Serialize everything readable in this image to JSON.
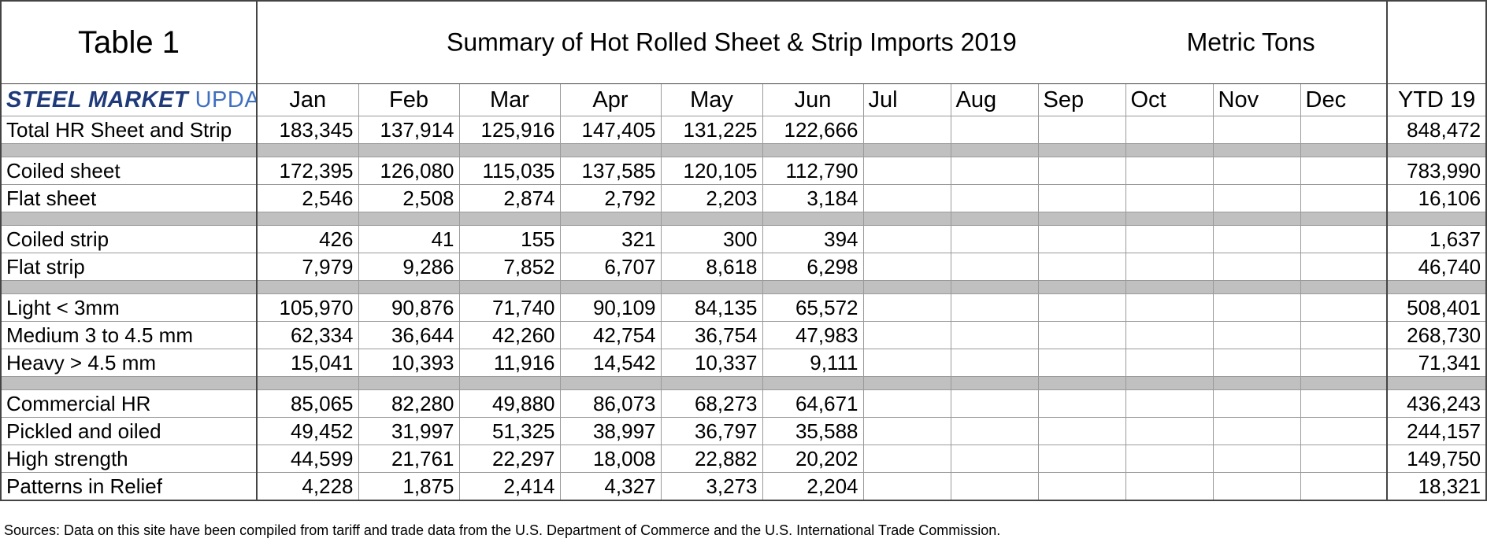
{
  "header": {
    "title": "Table 1",
    "subtitle": "Summary of Hot Rolled Sheet & Strip Imports 2019",
    "units": "Metric Tons",
    "logo_bold": "STEEL MARKET",
    "logo_light": "UPDATE"
  },
  "table": {
    "columns": [
      "Jan",
      "Feb",
      "Mar",
      "Apr",
      "May",
      "Jun",
      "Jul",
      "Aug",
      "Sep",
      "Oct",
      "Nov",
      "Dec",
      "YTD 19"
    ],
    "groups": [
      [
        {
          "label": "Total HR Sheet and Strip",
          "values": [
            "183,345",
            "137,914",
            "125,916",
            "147,405",
            "131,225",
            "122,666"
          ],
          "ytd": "848,472"
        }
      ],
      [
        {
          "label": "Coiled sheet",
          "values": [
            "172,395",
            "126,080",
            "115,035",
            "137,585",
            "120,105",
            "112,790"
          ],
          "ytd": "783,990"
        },
        {
          "label": "Flat sheet",
          "values": [
            "2,546",
            "2,508",
            "2,874",
            "2,792",
            "2,203",
            "3,184"
          ],
          "ytd": "16,106"
        }
      ],
      [
        {
          "label": "Coiled strip",
          "values": [
            "426",
            "41",
            "155",
            "321",
            "300",
            "394"
          ],
          "ytd": "1,637"
        },
        {
          "label": "Flat strip",
          "values": [
            "7,979",
            "9,286",
            "7,852",
            "6,707",
            "8,618",
            "6,298"
          ],
          "ytd": "46,740"
        }
      ],
      [
        {
          "label": "Light < 3mm",
          "values": [
            "105,970",
            "90,876",
            "71,740",
            "90,109",
            "84,135",
            "65,572"
          ],
          "ytd": "508,401"
        },
        {
          "label": "Medium 3 to 4.5 mm",
          "values": [
            "62,334",
            "36,644",
            "42,260",
            "42,754",
            "36,754",
            "47,983"
          ],
          "ytd": "268,730"
        },
        {
          "label": "Heavy > 4.5 mm",
          "values": [
            "15,041",
            "10,393",
            "11,916",
            "14,542",
            "10,337",
            "9,111"
          ],
          "ytd": "71,341"
        }
      ],
      [
        {
          "label": "Commercial HR",
          "values": [
            "85,065",
            "82,280",
            "49,880",
            "86,073",
            "68,273",
            "64,671"
          ],
          "ytd": "436,243"
        },
        {
          "label": "Pickled and oiled",
          "values": [
            "49,452",
            "31,997",
            "51,325",
            "38,997",
            "36,797",
            "35,588"
          ],
          "ytd": "244,157"
        },
        {
          "label": "High strength",
          "values": [
            "44,599",
            "21,761",
            "22,297",
            "18,008",
            "22,882",
            "20,202"
          ],
          "ytd": "149,750"
        },
        {
          "label": "Patterns in Relief",
          "values": [
            "4,228",
            "1,875",
            "2,414",
            "4,327",
            "3,273",
            "2,204"
          ],
          "ytd": "18,321"
        }
      ]
    ]
  },
  "footer": {
    "source": "Sources: Data on this site have been compiled from tariff and trade data from the U.S. Department of Commerce and the U.S. International Trade Commission."
  }
}
